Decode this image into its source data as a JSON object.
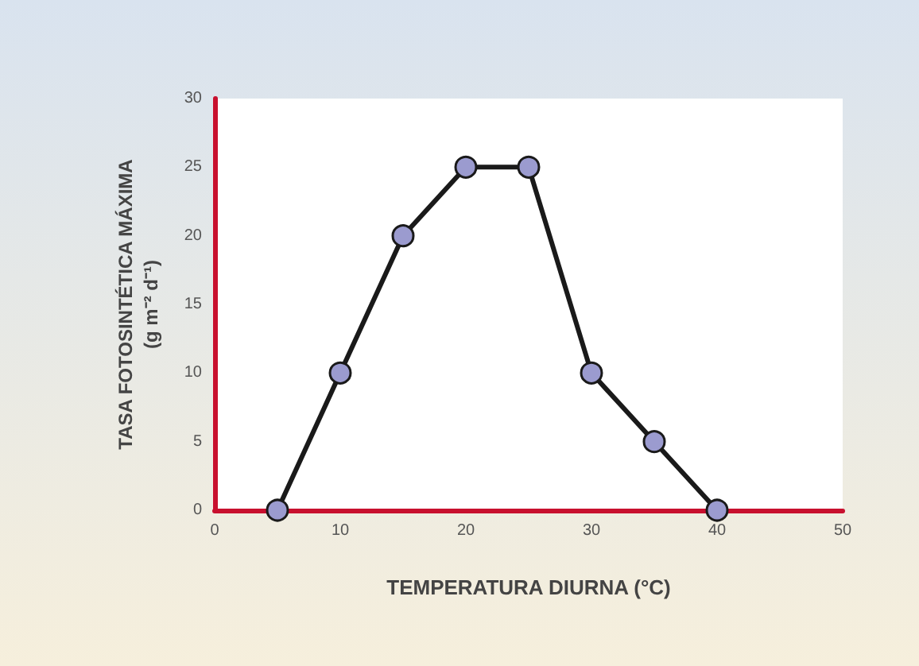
{
  "chart_data": {
    "type": "line",
    "xlabel": "TEMPERATURA DIURNA (°C)",
    "ylabel": "TASA FOTOSINTÉTICA MÁXIMA\n(g m⁻² d⁻¹)",
    "x": [
      5,
      10,
      15,
      20,
      25,
      30,
      35,
      40
    ],
    "series": [
      {
        "color": "#1a1a1a",
        "values": [
          0,
          10,
          20,
          25,
          25,
          10,
          5,
          0
        ]
      }
    ],
    "xlim": [
      0,
      50
    ],
    "xticks": [
      0,
      10,
      20,
      30,
      40,
      50
    ],
    "ylim": [
      0,
      30
    ],
    "yticks": [
      0,
      5,
      10,
      15,
      20,
      25,
      30
    ],
    "grid": false,
    "marker": "circle",
    "line_style": "solid"
  }
}
